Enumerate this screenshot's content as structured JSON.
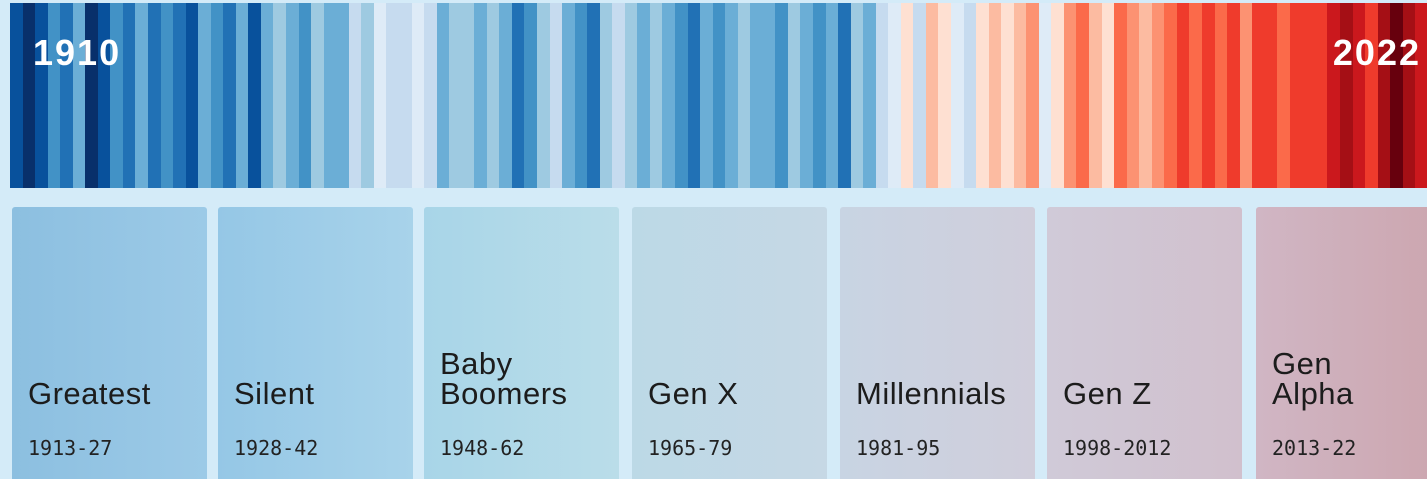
{
  "stripes": {
    "start_label": "1910",
    "end_label": "2022",
    "colors": [
      "#08519c",
      "#08306b",
      "#08519c",
      "#4292c6",
      "#2171b5",
      "#6baed6",
      "#08306b",
      "#08519c",
      "#4292c6",
      "#2171b5",
      "#6baed6",
      "#2171b5",
      "#4292c6",
      "#2171b5",
      "#08519c",
      "#6baed6",
      "#4292c6",
      "#2171b5",
      "#6baed6",
      "#08519c",
      "#6baed6",
      "#9ecae1",
      "#6baed6",
      "#4292c6",
      "#9ecae1",
      "#6baed6",
      "#6baed6",
      "#c6dbef",
      "#9ecae1",
      "#deebf7",
      "#c6dbef",
      "#c6dbef",
      "#deebf7",
      "#c6dbef",
      "#6baed6",
      "#9ecae1",
      "#9ecae1",
      "#6baed6",
      "#9ecae1",
      "#6baed6",
      "#2171b5",
      "#4292c6",
      "#9ecae1",
      "#c6dbef",
      "#6baed6",
      "#4292c6",
      "#2171b5",
      "#9ecae1",
      "#c6dbef",
      "#9ecae1",
      "#6baed6",
      "#9ecae1",
      "#6baed6",
      "#4292c6",
      "#2171b5",
      "#6baed6",
      "#4292c6",
      "#6baed6",
      "#9ecae1",
      "#6baed6",
      "#6baed6",
      "#4292c6",
      "#9ecae1",
      "#6baed6",
      "#4292c6",
      "#6baed6",
      "#2171b5",
      "#9ecae1",
      "#6baed6",
      "#c6dbef",
      "#deebf7",
      "#fee0d2",
      "#c6dbef",
      "#fcbba1",
      "#fee0d2",
      "#deebf7",
      "#c6dbef",
      "#fee0d2",
      "#fcbba1",
      "#fee0d2",
      "#fcbba1",
      "#fc9272",
      "#deebf7",
      "#fee0d2",
      "#fc9272",
      "#fb6a4a",
      "#fcbba1",
      "#fee0d2",
      "#fb6a4a",
      "#fc9272",
      "#fcbba1",
      "#fc9272",
      "#fb6a4a",
      "#ef3b2c",
      "#fb6a4a",
      "#ef3b2c",
      "#fb6a4a",
      "#ef3b2c",
      "#fc9272",
      "#ef3b2c",
      "#ef3b2c",
      "#fb6a4a",
      "#ef3b2c",
      "#ef3b2c",
      "#ef3b2c",
      "#cb181d",
      "#a50f15",
      "#cb181d",
      "#ef3b2c",
      "#a50f15",
      "#67000d",
      "#a50f15",
      "#cb181d"
    ]
  },
  "generations": [
    {
      "name": [
        "Greatest"
      ],
      "years": "1913-27",
      "color": [
        "#8cbfe0",
        "#9ccae7"
      ]
    },
    {
      "name": [
        "Silent"
      ],
      "years": "1928-42",
      "color": [
        "#95c7e6",
        "#a8d3ea"
      ]
    },
    {
      "name": [
        "Baby",
        "Boomers"
      ],
      "years": "1948-62",
      "color": [
        "#a8d5e8",
        "#badde9"
      ]
    },
    {
      "name": [
        "Gen X"
      ],
      "years": "1965-79",
      "color": [
        "#bcd9e6",
        "#c6d8e5"
      ]
    },
    {
      "name": [
        "Millennials"
      ],
      "years": "1981-95",
      "color": [
        "#c8d4e3",
        "#d0cedb"
      ]
    },
    {
      "name": [
        "Gen Z"
      ],
      "years": "1998-2012",
      "color": [
        "#d0cad8",
        "#d1c0cd"
      ]
    },
    {
      "name": [
        "Gen",
        "Alpha"
      ],
      "years": "2013-22",
      "color": [
        "#d0b6c4",
        "#cca5ae"
      ]
    }
  ]
}
